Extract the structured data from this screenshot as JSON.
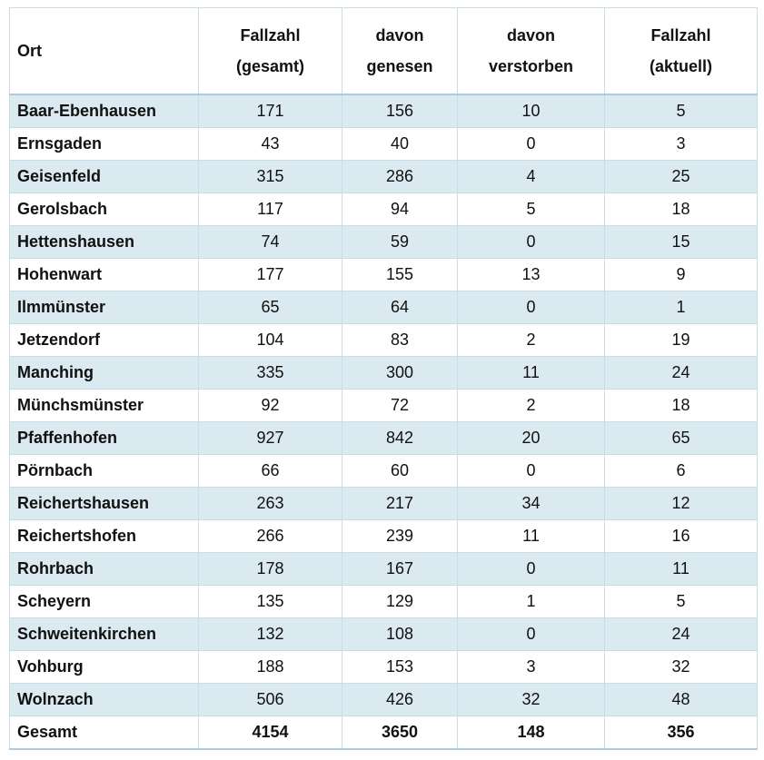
{
  "table": {
    "header": [
      "Ort",
      "Fallzahl\n(gesamt)",
      "davon\ngenesen",
      "davon\nverstorben",
      "Fallzahl\n(aktuell)"
    ],
    "rows": [
      [
        "Baar-Ebenhausen",
        171,
        156,
        10,
        5
      ],
      [
        "Ernsgaden",
        43,
        40,
        0,
        3
      ],
      [
        "Geisenfeld",
        315,
        286,
        4,
        25
      ],
      [
        "Gerolsbach",
        117,
        94,
        5,
        18
      ],
      [
        "Hettenshausen",
        74,
        59,
        0,
        15
      ],
      [
        "Hohenwart",
        177,
        155,
        13,
        9
      ],
      [
        "Ilmmünster",
        65,
        64,
        0,
        1
      ],
      [
        "Jetzendorf",
        104,
        83,
        2,
        19
      ],
      [
        "Manching",
        335,
        300,
        11,
        24
      ],
      [
        "Münchsmünster",
        92,
        72,
        2,
        18
      ],
      [
        "Pfaffenhofen",
        927,
        842,
        20,
        65
      ],
      [
        "Pörnbach",
        66,
        60,
        0,
        6
      ],
      [
        "Reichertshausen",
        263,
        217,
        34,
        12
      ],
      [
        "Reichertshofen",
        266,
        239,
        11,
        16
      ],
      [
        "Rohrbach",
        178,
        167,
        0,
        11
      ],
      [
        "Scheyern",
        135,
        129,
        1,
        5
      ],
      [
        "Schweitenkirchen",
        132,
        108,
        0,
        24
      ],
      [
        "Vohburg",
        188,
        153,
        3,
        32
      ],
      [
        "Wolnzach",
        506,
        426,
        32,
        48
      ]
    ],
    "total": [
      "Gesamt",
      4154,
      3650,
      148,
      356
    ]
  }
}
